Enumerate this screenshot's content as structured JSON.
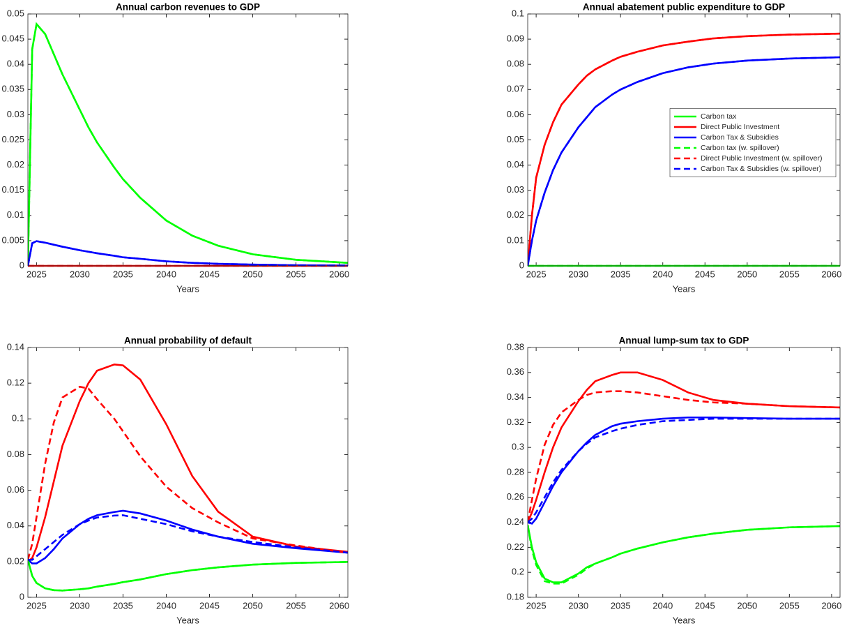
{
  "chart_data": [
    {
      "type": "line",
      "title": "Annual carbon revenues to GDP",
      "xlabel": "Years",
      "x": [
        2024,
        2024.5,
        2025,
        2026,
        2027,
        2028,
        2030,
        2031,
        2032,
        2034,
        2035,
        2037,
        2040,
        2043,
        2046,
        2050,
        2055,
        2061
      ],
      "xlim": [
        2024,
        2061
      ],
      "xticks": [
        2025,
        2030,
        2035,
        2040,
        2045,
        2050,
        2055,
        2060
      ],
      "ylim": [
        0,
        0.05
      ],
      "yticks": [
        0,
        0.005,
        0.01,
        0.015,
        0.02,
        0.025,
        0.03,
        0.035,
        0.04,
        0.045,
        0.05
      ],
      "series": [
        {
          "name": "Carbon tax",
          "color": "#00ff00",
          "linestyle": "solid",
          "values": [
            0,
            0.043,
            0.048,
            0.046,
            0.042,
            0.038,
            0.031,
            0.0275,
            0.0245,
            0.0195,
            0.0172,
            0.0135,
            0.009,
            0.006,
            0.004,
            0.0023,
            0.0012,
            0.0006
          ]
        },
        {
          "name": "Direct Public Investment",
          "color": "#ff0000",
          "linestyle": "solid",
          "values": [
            0,
            0,
            0,
            0,
            0,
            0,
            0,
            0,
            0,
            0,
            0,
            0,
            0,
            0,
            0,
            0,
            0,
            0
          ]
        },
        {
          "name": "Carbon Tax & Subsidies",
          "color": "#0000ff",
          "linestyle": "solid",
          "values": [
            0,
            0.0045,
            0.0049,
            0.0046,
            0.0042,
            0.0038,
            0.0031,
            0.0028,
            0.0025,
            0.002,
            0.0017,
            0.0014,
            0.0009,
            0.0006,
            0.0004,
            0.00025,
            0.00012,
            6e-05
          ]
        },
        {
          "name": "Carbon tax (w. spillover)",
          "color": "#00ff00",
          "linestyle": "dashed",
          "values": [
            0,
            0.043,
            0.048,
            0.046,
            0.042,
            0.038,
            0.031,
            0.0275,
            0.0245,
            0.0195,
            0.0172,
            0.0135,
            0.009,
            0.006,
            0.004,
            0.0023,
            0.0012,
            0.0006
          ]
        },
        {
          "name": "Direct Public Investment (w. spillover)",
          "color": "#ff0000",
          "linestyle": "dashed",
          "values": [
            0,
            0,
            0,
            0,
            0,
            0,
            0,
            0,
            0,
            0,
            0,
            0,
            0,
            0,
            0,
            0,
            0,
            0
          ]
        },
        {
          "name": "Carbon Tax & Subsidies (w. spillover)",
          "color": "#0000ff",
          "linestyle": "dashed",
          "values": [
            0,
            0.0045,
            0.0049,
            0.0046,
            0.0042,
            0.0038,
            0.0031,
            0.0028,
            0.0025,
            0.002,
            0.0017,
            0.0014,
            0.0009,
            0.0006,
            0.0004,
            0.00025,
            0.00012,
            6e-05
          ]
        }
      ]
    },
    {
      "type": "line",
      "title": "Annual abatement public expenditure to GDP",
      "xlabel": "Years",
      "legend": "east",
      "x": [
        2024,
        2024.5,
        2025,
        2026,
        2027,
        2028,
        2030,
        2031,
        2032,
        2034,
        2035,
        2037,
        2040,
        2043,
        2046,
        2050,
        2055,
        2061
      ],
      "xlim": [
        2024,
        2061
      ],
      "xticks": [
        2025,
        2030,
        2035,
        2040,
        2045,
        2050,
        2055,
        2060
      ],
      "ylim": [
        0,
        0.1
      ],
      "yticks": [
        0,
        0.01,
        0.02,
        0.03,
        0.04,
        0.05,
        0.06,
        0.07,
        0.08,
        0.09,
        0.1
      ],
      "series": [
        {
          "name": "Carbon tax",
          "color": "#00ff00",
          "linestyle": "solid",
          "values": [
            0,
            0,
            0,
            0,
            0,
            0,
            0,
            0,
            0,
            0,
            0,
            0,
            0,
            0,
            0,
            0,
            0,
            0
          ]
        },
        {
          "name": "Direct Public Investment",
          "color": "#ff0000",
          "linestyle": "solid",
          "values": [
            0,
            0.02,
            0.035,
            0.048,
            0.057,
            0.064,
            0.072,
            0.0755,
            0.078,
            0.0815,
            0.083,
            0.085,
            0.0875,
            0.089,
            0.0903,
            0.0912,
            0.0918,
            0.0922
          ]
        },
        {
          "name": "Carbon Tax & Subsidies",
          "color": "#0000ff",
          "linestyle": "solid",
          "values": [
            0,
            0.01,
            0.018,
            0.029,
            0.038,
            0.045,
            0.055,
            0.059,
            0.063,
            0.068,
            0.07,
            0.073,
            0.0765,
            0.0788,
            0.0803,
            0.0815,
            0.0823,
            0.0828
          ]
        },
        {
          "name": "Carbon tax (w. spillover)",
          "color": "#00ff00",
          "linestyle": "dashed",
          "values": [
            0,
            0,
            0,
            0,
            0,
            0,
            0,
            0,
            0,
            0,
            0,
            0,
            0,
            0,
            0,
            0,
            0,
            0
          ]
        },
        {
          "name": "Direct Public Investment (w. spillover)",
          "color": "#ff0000",
          "linestyle": "dashed",
          "values": [
            0,
            0.02,
            0.035,
            0.048,
            0.057,
            0.064,
            0.072,
            0.0755,
            0.078,
            0.0815,
            0.083,
            0.085,
            0.0875,
            0.089,
            0.0903,
            0.0912,
            0.0918,
            0.0922
          ]
        },
        {
          "name": "Carbon Tax & Subsidies (w. spillover)",
          "color": "#0000ff",
          "linestyle": "dashed",
          "values": [
            0,
            0.01,
            0.018,
            0.029,
            0.038,
            0.045,
            0.055,
            0.059,
            0.063,
            0.068,
            0.07,
            0.073,
            0.0765,
            0.0788,
            0.0803,
            0.0815,
            0.0823,
            0.0828
          ]
        }
      ]
    },
    {
      "type": "line",
      "title": "Annual probability of default",
      "xlabel": "Years",
      "x": [
        2024,
        2024.5,
        2025,
        2026,
        2027,
        2028,
        2030,
        2031,
        2032,
        2034,
        2035,
        2037,
        2040,
        2043,
        2046,
        2050,
        2055,
        2061
      ],
      "xlim": [
        2024,
        2061
      ],
      "xticks": [
        2025,
        2030,
        2035,
        2040,
        2045,
        2050,
        2055,
        2060
      ],
      "ylim": [
        0,
        0.14
      ],
      "yticks": [
        0,
        0.02,
        0.04,
        0.06,
        0.08,
        0.1,
        0.12,
        0.14
      ],
      "series": [
        {
          "name": "Carbon tax",
          "color": "#00ff00",
          "linestyle": "solid",
          "values": [
            0.021,
            0.012,
            0.008,
            0.005,
            0.004,
            0.0038,
            0.0045,
            0.005,
            0.006,
            0.0075,
            0.0085,
            0.01,
            0.013,
            0.0152,
            0.0168,
            0.0183,
            0.0193,
            0.0198
          ]
        },
        {
          "name": "Direct Public Investment",
          "color": "#ff0000",
          "linestyle": "solid",
          "values": [
            0.02,
            0.022,
            0.028,
            0.045,
            0.065,
            0.085,
            0.11,
            0.12,
            0.127,
            0.1305,
            0.13,
            0.122,
            0.097,
            0.068,
            0.048,
            0.034,
            0.0285,
            0.0255
          ]
        },
        {
          "name": "Carbon Tax & Subsidies",
          "color": "#0000ff",
          "linestyle": "solid",
          "values": [
            0.021,
            0.019,
            0.019,
            0.022,
            0.027,
            0.033,
            0.041,
            0.044,
            0.046,
            0.0478,
            0.0485,
            0.047,
            0.043,
            0.038,
            0.034,
            0.03,
            0.0275,
            0.025
          ]
        },
        {
          "name": "Carbon tax (w. spillover)",
          "color": "#00ff00",
          "linestyle": "dashed",
          "values": [
            0.021,
            0.012,
            0.008,
            0.005,
            0.004,
            0.0038,
            0.0045,
            0.005,
            0.006,
            0.0075,
            0.0085,
            0.01,
            0.013,
            0.0152,
            0.0168,
            0.0183,
            0.0193,
            0.0198
          ]
        },
        {
          "name": "Direct Public Investment (w. spillover)",
          "color": "#ff0000",
          "linestyle": "dashed",
          "values": [
            0.021,
            0.03,
            0.045,
            0.075,
            0.098,
            0.112,
            0.118,
            0.117,
            0.111,
            0.1,
            0.093,
            0.079,
            0.062,
            0.05,
            0.042,
            0.033,
            0.029,
            0.025
          ]
        },
        {
          "name": "Carbon Tax & Subsidies (w. spillover)",
          "color": "#0000ff",
          "linestyle": "dashed",
          "values": [
            0.021,
            0.021,
            0.023,
            0.027,
            0.031,
            0.035,
            0.041,
            0.043,
            0.0447,
            0.0458,
            0.046,
            0.044,
            0.041,
            0.037,
            0.034,
            0.031,
            0.028,
            0.025
          ]
        }
      ]
    },
    {
      "type": "line",
      "title": "Annual lump-sum tax to GDP",
      "xlabel": "Years",
      "x": [
        2024,
        2024.5,
        2025,
        2026,
        2027,
        2028,
        2030,
        2031,
        2032,
        2034,
        2035,
        2037,
        2040,
        2043,
        2046,
        2050,
        2055,
        2061
      ],
      "xlim": [
        2024,
        2061
      ],
      "xticks": [
        2025,
        2030,
        2035,
        2040,
        2045,
        2050,
        2055,
        2060
      ],
      "ylim": [
        0.18,
        0.38
      ],
      "yticks": [
        0.18,
        0.2,
        0.22,
        0.24,
        0.26,
        0.28,
        0.3,
        0.32,
        0.34,
        0.36,
        0.38
      ],
      "series": [
        {
          "name": "Carbon tax",
          "color": "#00ff00",
          "linestyle": "solid",
          "values": [
            0.238,
            0.22,
            0.208,
            0.195,
            0.192,
            0.192,
            0.199,
            0.204,
            0.207,
            0.212,
            0.215,
            0.219,
            0.224,
            0.228,
            0.231,
            0.234,
            0.236,
            0.237
          ]
        },
        {
          "name": "Direct Public Investment",
          "color": "#ff0000",
          "linestyle": "solid",
          "values": [
            0.24,
            0.248,
            0.258,
            0.28,
            0.3,
            0.316,
            0.337,
            0.346,
            0.353,
            0.358,
            0.36,
            0.36,
            0.354,
            0.344,
            0.338,
            0.335,
            0.333,
            0.332
          ]
        },
        {
          "name": "Carbon Tax & Subsidies",
          "color": "#0000ff",
          "linestyle": "solid",
          "values": [
            0.24,
            0.239,
            0.243,
            0.256,
            0.269,
            0.28,
            0.297,
            0.304,
            0.31,
            0.317,
            0.319,
            0.321,
            0.323,
            0.324,
            0.324,
            0.3235,
            0.323,
            0.323
          ]
        },
        {
          "name": "Carbon tax (w. spillover)",
          "color": "#00ff00",
          "linestyle": "dashed",
          "values": [
            0.238,
            0.218,
            0.206,
            0.193,
            0.191,
            0.191,
            0.198,
            0.203,
            0.207,
            0.212,
            0.215,
            0.219,
            0.224,
            0.228,
            0.231,
            0.234,
            0.236,
            0.237
          ]
        },
        {
          "name": "Direct Public Investment (w. spillover)",
          "color": "#ff0000",
          "linestyle": "dashed",
          "values": [
            0.24,
            0.258,
            0.275,
            0.302,
            0.318,
            0.328,
            0.338,
            0.342,
            0.344,
            0.345,
            0.345,
            0.344,
            0.341,
            0.338,
            0.336,
            0.335,
            0.333,
            0.332
          ]
        },
        {
          "name": "Carbon Tax & Subsidies (w. spillover)",
          "color": "#0000ff",
          "linestyle": "dashed",
          "values": [
            0.24,
            0.243,
            0.248,
            0.26,
            0.272,
            0.282,
            0.297,
            0.303,
            0.308,
            0.313,
            0.315,
            0.318,
            0.321,
            0.322,
            0.323,
            0.323,
            0.323,
            0.323
          ]
        }
      ]
    }
  ]
}
